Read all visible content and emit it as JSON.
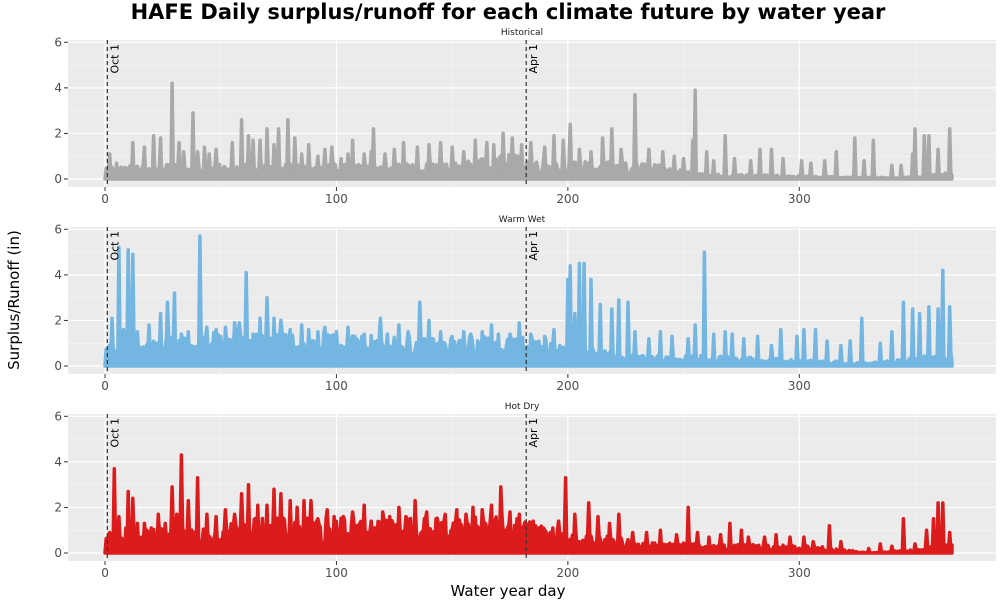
{
  "chart_data": {
    "type": "area",
    "title": "HAFE Daily surplus/runoff for each climate future by water year",
    "xlabel": "Water year day",
    "ylabel": "Surplus/Runoff (in)",
    "xlim": [
      -16,
      385
    ],
    "ylim": [
      -0.35,
      6.1
    ],
    "x_ticks": [
      0,
      100,
      200,
      300
    ],
    "y_ticks": [
      0,
      2,
      4,
      6
    ],
    "grid": true,
    "reference_lines": [
      {
        "x": 1,
        "label": "Oct 1"
      },
      {
        "x": 182,
        "label": "Apr 1"
      }
    ],
    "panels": [
      {
        "name": "Historical",
        "color": "#A9A9A9",
        "peaks": [
          [
            2,
            1.1
          ],
          [
            5,
            0.7
          ],
          [
            12,
            1.6
          ],
          [
            17,
            1.4
          ],
          [
            21,
            1.9
          ],
          [
            24,
            1.8
          ],
          [
            29,
            4.2
          ],
          [
            32,
            1.6
          ],
          [
            34,
            1.2
          ],
          [
            38,
            2.9
          ],
          [
            40,
            1.2
          ],
          [
            43,
            1.4
          ],
          [
            45,
            1.1
          ],
          [
            48,
            1.3
          ],
          [
            55,
            1.6
          ],
          [
            59,
            2.6
          ],
          [
            62,
            1.9
          ],
          [
            64,
            1.7
          ],
          [
            67,
            1.7
          ],
          [
            70,
            2.2
          ],
          [
            73,
            1.5
          ],
          [
            75,
            2.2
          ],
          [
            79,
            2.6
          ],
          [
            82,
            1.8
          ],
          [
            85,
            1.1
          ],
          [
            88,
            1.5
          ],
          [
            92,
            1.0
          ],
          [
            95,
            1.3
          ],
          [
            98,
            1.4
          ],
          [
            102,
            0.9
          ],
          [
            105,
            1.1
          ],
          [
            107,
            1.7
          ],
          [
            112,
            1.1
          ],
          [
            115,
            1.2
          ],
          [
            116,
            2.2
          ],
          [
            121,
            1.1
          ],
          [
            125,
            1.3
          ],
          [
            129,
            1.6
          ],
          [
            135,
            1.4
          ],
          [
            140,
            1.5
          ],
          [
            145,
            1.6
          ],
          [
            150,
            1.4
          ],
          [
            155,
            1.2
          ],
          [
            160,
            1.7
          ],
          [
            165,
            1.6
          ],
          [
            168,
            1.5
          ],
          [
            172,
            2.0
          ],
          [
            176,
            1.8
          ],
          [
            180,
            1.5
          ],
          [
            184,
            1.6
          ],
          [
            190,
            1.4
          ],
          [
            194,
            1.9
          ],
          [
            198,
            1.7
          ],
          [
            201,
            2.4
          ],
          [
            205,
            1.3
          ],
          [
            210,
            1.2
          ],
          [
            215,
            1.8
          ],
          [
            219,
            2.2
          ],
          [
            223,
            1.3
          ],
          [
            229,
            3.7
          ],
          [
            235,
            1.3
          ],
          [
            241,
            1.2
          ],
          [
            246,
            1.0
          ],
          [
            250,
            0.9
          ],
          [
            254,
            1.7
          ],
          [
            255,
            3.9
          ],
          [
            260,
            1.2
          ],
          [
            263,
            0.8
          ],
          [
            268,
            1.9
          ],
          [
            272,
            0.9
          ],
          [
            279,
            0.8
          ],
          [
            283,
            1.3
          ],
          [
            288,
            1.3
          ],
          [
            293,
            0.9
          ],
          [
            301,
            0.8
          ],
          [
            305,
            0.7
          ],
          [
            311,
            0.8
          ],
          [
            316,
            1.2
          ],
          [
            324,
            1.8
          ],
          [
            328,
            0.8
          ],
          [
            332,
            1.7
          ],
          [
            340,
            0.6
          ],
          [
            344,
            0.6
          ],
          [
            349,
            1.1
          ],
          [
            350,
            2.2
          ],
          [
            354,
            1.9
          ],
          [
            356,
            1.9
          ],
          [
            360,
            1.3
          ],
          [
            365,
            2.2
          ]
        ],
        "base": [
          [
            0,
            0.4
          ],
          [
            150,
            0.45
          ],
          [
            175,
            0.7
          ],
          [
            200,
            0.5
          ],
          [
            230,
            0.5
          ],
          [
            260,
            0.15
          ],
          [
            330,
            0.05
          ],
          [
            345,
            0.05
          ],
          [
            366,
            0.2
          ]
        ]
      },
      {
        "name": "Warm Wet",
        "color": "#74B6E2",
        "peaks": [
          [
            3,
            2.1
          ],
          [
            6,
            5.2
          ],
          [
            8,
            1.6
          ],
          [
            10,
            5.1
          ],
          [
            12,
            4.9
          ],
          [
            14,
            1.5
          ],
          [
            19,
            1.8
          ],
          [
            24,
            2.3
          ],
          [
            27,
            2.8
          ],
          [
            30,
            3.2
          ],
          [
            33,
            1.4
          ],
          [
            36,
            1.5
          ],
          [
            41,
            5.7
          ],
          [
            44,
            1.7
          ],
          [
            48,
            1.6
          ],
          [
            52,
            1.7
          ],
          [
            56,
            1.9
          ],
          [
            58,
            1.9
          ],
          [
            61,
            4.1
          ],
          [
            64,
            1.4
          ],
          [
            67,
            2.1
          ],
          [
            70,
            3.0
          ],
          [
            73,
            2.1
          ],
          [
            76,
            2.0
          ],
          [
            80,
            1.6
          ],
          [
            85,
            1.8
          ],
          [
            88,
            1.6
          ],
          [
            92,
            1.5
          ],
          [
            95,
            1.7
          ],
          [
            100,
            1.5
          ],
          [
            105,
            1.7
          ],
          [
            108,
            1.3
          ],
          [
            112,
            1.4
          ],
          [
            119,
            2.1
          ],
          [
            122,
            1.4
          ],
          [
            127,
            1.8
          ],
          [
            131,
            1.5
          ],
          [
            136,
            2.8
          ],
          [
            140,
            2.0
          ],
          [
            145,
            1.5
          ],
          [
            150,
            1.3
          ],
          [
            155,
            1.5
          ],
          [
            158,
            1.4
          ],
          [
            163,
            1.5
          ],
          [
            167,
            1.8
          ],
          [
            170,
            1.4
          ],
          [
            175,
            1.4
          ],
          [
            179,
            1.9
          ],
          [
            184,
            1.4
          ],
          [
            190,
            1.3
          ],
          [
            194,
            1.6
          ],
          [
            200,
            3.8
          ],
          [
            201,
            4.4
          ],
          [
            203,
            2.3
          ],
          [
            205,
            4.5
          ],
          [
            207,
            4.5
          ],
          [
            210,
            3.8
          ],
          [
            214,
            2.7
          ],
          [
            219,
            2.5
          ],
          [
            222,
            2.9
          ],
          [
            226,
            2.8
          ],
          [
            229,
            1.5
          ],
          [
            235,
            1.2
          ],
          [
            240,
            1.5
          ],
          [
            245,
            1.3
          ],
          [
            252,
            1.2
          ],
          [
            255,
            1.8
          ],
          [
            259,
            5.0
          ],
          [
            263,
            1.4
          ],
          [
            268,
            1.5
          ],
          [
            271,
            1.4
          ],
          [
            276,
            1.2
          ],
          [
            282,
            1.3
          ],
          [
            288,
            0.9
          ],
          [
            292,
            1.6
          ],
          [
            299,
            1.3
          ],
          [
            302,
            1.6
          ],
          [
            307,
            1.6
          ],
          [
            312,
            1.1
          ],
          [
            318,
            0.9
          ],
          [
            322,
            1.1
          ],
          [
            327,
            2.1
          ],
          [
            335,
            1.0
          ],
          [
            340,
            1.5
          ],
          [
            345,
            2.8
          ],
          [
            349,
            2.5
          ],
          [
            352,
            2.3
          ],
          [
            356,
            2.6
          ],
          [
            360,
            2.5
          ],
          [
            362,
            4.2
          ],
          [
            365,
            2.6
          ]
        ],
        "base": [
          [
            0,
            0.6
          ],
          [
            50,
            1.0
          ],
          [
            150,
            0.8
          ],
          [
            180,
            0.9
          ],
          [
            200,
            0.6
          ],
          [
            230,
            0.3
          ],
          [
            260,
            0.3
          ],
          [
            330,
            0.1
          ],
          [
            345,
            0.2
          ],
          [
            366,
            0.4
          ]
        ]
      },
      {
        "name": "Hot Dry",
        "color": "#DC1C1C",
        "peaks": [
          [
            2,
            0.9
          ],
          [
            4,
            3.7
          ],
          [
            6,
            1.6
          ],
          [
            9,
            1.1
          ],
          [
            10,
            2.7
          ],
          [
            12,
            2.4
          ],
          [
            14,
            1.3
          ],
          [
            17,
            1.3
          ],
          [
            20,
            1.1
          ],
          [
            23,
            1.7
          ],
          [
            26,
            1.3
          ],
          [
            29,
            2.9
          ],
          [
            31,
            1.7
          ],
          [
            33,
            4.3
          ],
          [
            36,
            2.3
          ],
          [
            40,
            3.3
          ],
          [
            44,
            1.7
          ],
          [
            48,
            1.6
          ],
          [
            52,
            1.9
          ],
          [
            56,
            1.7
          ],
          [
            59,
            2.6
          ],
          [
            62,
            3.0
          ],
          [
            66,
            2.1
          ],
          [
            70,
            2.1
          ],
          [
            73,
            2.8
          ],
          [
            76,
            2.6
          ],
          [
            80,
            2.3
          ],
          [
            83,
            2.0
          ],
          [
            86,
            2.3
          ],
          [
            89,
            2.3
          ],
          [
            92,
            1.5
          ],
          [
            96,
            1.9
          ],
          [
            99,
            1.6
          ],
          [
            103,
            1.6
          ],
          [
            107,
            1.8
          ],
          [
            112,
            2.1
          ],
          [
            115,
            1.4
          ],
          [
            120,
            1.8
          ],
          [
            123,
            1.6
          ],
          [
            127,
            2.0
          ],
          [
            130,
            1.6
          ],
          [
            134,
            2.3
          ],
          [
            139,
            1.8
          ],
          [
            143,
            1.5
          ],
          [
            147,
            1.7
          ],
          [
            152,
            1.9
          ],
          [
            156,
            1.7
          ],
          [
            159,
            2.0
          ],
          [
            163,
            1.9
          ],
          [
            167,
            2.1
          ],
          [
            171,
            2.9
          ],
          [
            175,
            1.8
          ],
          [
            179,
            1.7
          ],
          [
            185,
            1.4
          ],
          [
            190,
            1.0
          ],
          [
            196,
            1.4
          ],
          [
            199,
            3.3
          ],
          [
            203,
            1.7
          ],
          [
            209,
            2.2
          ],
          [
            213,
            1.6
          ],
          [
            218,
            1.3
          ],
          [
            222,
            1.7
          ],
          [
            228,
            0.9
          ],
          [
            234,
            0.9
          ],
          [
            240,
            1.0
          ],
          [
            247,
            0.8
          ],
          [
            252,
            2.0
          ],
          [
            256,
            0.9
          ],
          [
            261,
            0.7
          ],
          [
            266,
            0.8
          ],
          [
            270,
            1.3
          ],
          [
            275,
            1.0
          ],
          [
            278,
            0.7
          ],
          [
            285,
            0.7
          ],
          [
            290,
            0.8
          ],
          [
            296,
            0.7
          ],
          [
            302,
            0.7
          ],
          [
            306,
            0.5
          ],
          [
            313,
            1.2
          ],
          [
            318,
            0.5
          ],
          [
            330,
            0.2
          ],
          [
            335,
            0.4
          ],
          [
            340,
            0.3
          ],
          [
            345,
            1.5
          ],
          [
            350,
            0.4
          ],
          [
            355,
            1.0
          ],
          [
            358,
            1.5
          ],
          [
            360,
            2.2
          ],
          [
            362,
            2.2
          ],
          [
            365,
            0.9
          ]
        ],
        "base": [
          [
            0,
            0.5
          ],
          [
            60,
            1.0
          ],
          [
            120,
            1.0
          ],
          [
            175,
            1.1
          ],
          [
            200,
            0.6
          ],
          [
            240,
            0.3
          ],
          [
            310,
            0.2
          ],
          [
            330,
            0.0
          ],
          [
            350,
            0.1
          ],
          [
            366,
            0.3
          ]
        ]
      }
    ]
  }
}
